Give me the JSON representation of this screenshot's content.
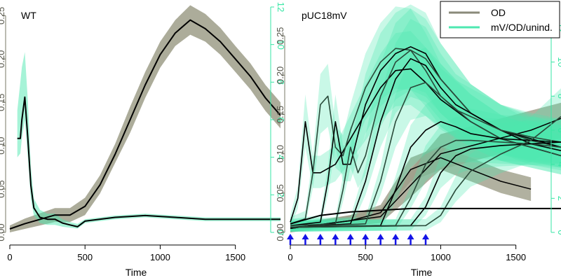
{
  "colors": {
    "od_band": "#9e9d88",
    "od_line": "#55554a",
    "mv_band": "#4de8b0",
    "mv_line": "#2a4a3a",
    "mean_line": "#000000",
    "mv_axis": "#36e6a4",
    "od_axis": "#777766",
    "arrow": "#1414e6"
  },
  "legend": {
    "placement": "top-right",
    "entries": [
      {
        "label": "OD",
        "color": "#8a8a7a"
      },
      {
        "label": "mV/OD/unind.",
        "color": "#4de8b0"
      }
    ]
  },
  "chart_data": [
    {
      "type": "line",
      "title": "WT",
      "xlabel": "Time",
      "ylabel": "",
      "xlim": [
        0,
        1800
      ],
      "ylim_left": [
        0,
        0.26
      ],
      "ylim_right": [
        0,
        12
      ],
      "x_ticks": [
        0,
        500,
        1000,
        1500
      ],
      "x_tick_labels": [
        "0",
        "500",
        "1000",
        "1500"
      ],
      "y_left_ticks": [
        0.0,
        0.05,
        0.1,
        0.15,
        0.2,
        0.25
      ],
      "y_left_tick_labels": [
        "0.00",
        "0.05",
        "0.10",
        "0.15",
        "0.20",
        "0.25"
      ],
      "y_right_ticks": [
        0,
        2,
        4,
        6,
        8,
        10,
        12
      ],
      "y_right_tick_labels": [
        "0",
        "2",
        "4",
        "6",
        "8",
        "10",
        "12"
      ],
      "grid": false,
      "series": [
        {
          "role": "od",
          "axis": "left",
          "x": [
            0,
            100,
            200,
            300,
            400,
            500,
            600,
            700,
            800,
            900,
            1000,
            1100,
            1200,
            1300,
            1400,
            1500,
            1600,
            1700,
            1800
          ],
          "y": [
            0.004,
            0.01,
            0.015,
            0.02,
            0.02,
            0.03,
            0.055,
            0.09,
            0.13,
            0.17,
            0.205,
            0.23,
            0.245,
            0.235,
            0.22,
            0.2,
            0.18,
            0.155,
            0.135
          ],
          "y_low": [
            0.0,
            0.004,
            0.008,
            0.012,
            0.012,
            0.02,
            0.045,
            0.08,
            0.115,
            0.155,
            0.19,
            0.215,
            0.228,
            0.22,
            0.205,
            0.185,
            0.165,
            0.14,
            0.12
          ],
          "y_high": [
            0.008,
            0.016,
            0.022,
            0.028,
            0.028,
            0.04,
            0.066,
            0.102,
            0.145,
            0.185,
            0.22,
            0.245,
            0.262,
            0.252,
            0.236,
            0.215,
            0.195,
            0.17,
            0.15
          ]
        },
        {
          "role": "mv",
          "axis": "right",
          "x": [
            50,
            70,
            80,
            100,
            120,
            140,
            160,
            200,
            250,
            300,
            350,
            400,
            450,
            500,
            700,
            900,
            1100,
            1300,
            1500,
            1800
          ],
          "y": [
            5.0,
            5.0,
            6.0,
            7.2,
            5.0,
            2.5,
            1.3,
            0.8,
            0.7,
            0.7,
            0.5,
            0.4,
            0.3,
            0.6,
            0.8,
            0.9,
            0.8,
            0.7,
            0.7,
            0.7
          ],
          "y_low": [
            4.0,
            4.2,
            5.0,
            6.0,
            4.0,
            1.8,
            0.9,
            0.5,
            0.4,
            0.4,
            0.3,
            0.25,
            0.2,
            0.5,
            0.7,
            0.8,
            0.7,
            0.6,
            0.6,
            0.6
          ],
          "y_high": [
            6.5,
            8.0,
            8.8,
            9.6,
            7.0,
            3.5,
            1.8,
            1.2,
            1.0,
            1.0,
            0.7,
            0.55,
            0.45,
            0.7,
            0.9,
            1.0,
            0.9,
            0.8,
            0.8,
            0.8
          ]
        }
      ]
    },
    {
      "type": "line",
      "title": "pUC18mV",
      "xlabel": "Time",
      "ylabel": "",
      "xlim": [
        0,
        1800
      ],
      "ylim_left": [
        0,
        0.26
      ],
      "ylim_right": [
        0,
        12
      ],
      "x_ticks": [
        0,
        500,
        1000,
        1500
      ],
      "x_tick_labels": [
        "0",
        "500",
        "1000",
        "1500"
      ],
      "y_left_ticks": [
        0.0,
        0.05,
        0.1,
        0.15,
        0.2,
        0.25
      ],
      "y_left_tick_labels": [
        "0.00",
        "0.05",
        "0.10",
        "0.15",
        "0.20",
        "0.25"
      ],
      "y_right_ticks": [
        0,
        2,
        4,
        6,
        8,
        10,
        12
      ],
      "y_right_tick_labels": [
        "0",
        "2",
        "4",
        "6",
        "8",
        "10",
        "12"
      ],
      "grid": false,
      "induction_times": [
        0,
        100,
        200,
        300,
        400,
        500,
        600,
        700,
        800,
        900
      ],
      "od_series": [
        {
          "x": [
            0,
            200,
            400,
            600,
            800,
            1000,
            1200,
            1400,
            1600,
            1800
          ],
          "y": [
            0.005,
            0.01,
            0.015,
            0.02,
            0.06,
            0.1,
            0.11,
            0.12,
            0.13,
            0.145
          ],
          "y_low": [
            0.0,
            0.005,
            0.008,
            0.012,
            0.045,
            0.08,
            0.09,
            0.1,
            0.11,
            0.12
          ],
          "y_high": [
            0.01,
            0.016,
            0.022,
            0.03,
            0.08,
            0.125,
            0.135,
            0.145,
            0.155,
            0.165
          ]
        },
        {
          "x": [
            0,
            200,
            400,
            600,
            800,
            1000,
            1200,
            1400,
            1600
          ],
          "y": [
            0.005,
            0.01,
            0.015,
            0.025,
            0.08,
            0.095,
            0.08,
            0.065,
            0.055
          ],
          "y_low": [
            0.0,
            0.005,
            0.01,
            0.018,
            0.065,
            0.08,
            0.065,
            0.05,
            0.04
          ],
          "y_high": [
            0.01,
            0.015,
            0.022,
            0.035,
            0.095,
            0.11,
            0.095,
            0.08,
            0.07
          ]
        }
      ],
      "mv_series": [
        {
          "induction": 0,
          "x": [
            0,
            50,
            100,
            150,
            200,
            300,
            400,
            500,
            600,
            700,
            800,
            900,
            1000,
            1200,
            1400,
            1600,
            1800
          ],
          "y": [
            0.6,
            2.0,
            6.5,
            3.5,
            3.5,
            4.0,
            5.5,
            7.0,
            8.5,
            9.5,
            9.6,
            8.8,
            7.8,
            6.5,
            5.5,
            5.0,
            4.5
          ]
        },
        {
          "induction": 100,
          "x": [
            0,
            100,
            150,
            200,
            250,
            300,
            350,
            400,
            500,
            600,
            700,
            800,
            900,
            1000,
            1200,
            1400,
            1600,
            1800
          ],
          "y": [
            0.5,
            0.8,
            3.5,
            7.5,
            8.0,
            5.0,
            4.5,
            6.0,
            8.5,
            10.0,
            10.8,
            10.7,
            9.5,
            8.0,
            6.5,
            5.5,
            5.0,
            4.5
          ]
        },
        {
          "induction": 200,
          "x": [
            0,
            200,
            250,
            300,
            350,
            400,
            500,
            600,
            700,
            800,
            900,
            1000,
            1200,
            1400,
            1600,
            1800
          ],
          "y": [
            0.4,
            0.6,
            3.0,
            6.5,
            4.0,
            4.0,
            7.5,
            9.5,
            10.5,
            10.9,
            10.5,
            9.0,
            7.0,
            6.0,
            5.2,
            4.8
          ]
        },
        {
          "induction": 300,
          "x": [
            0,
            300,
            350,
            400,
            450,
            500,
            600,
            700,
            800,
            900,
            1000,
            1200,
            1400,
            1600,
            1800
          ],
          "y": [
            0.4,
            0.5,
            2.5,
            5.0,
            3.5,
            4.5,
            8.0,
            10.0,
            10.7,
            10.2,
            9.0,
            7.0,
            6.0,
            5.4,
            5.0
          ]
        },
        {
          "induction": 400,
          "x": [
            0,
            400,
            500,
            600,
            700,
            800,
            900,
            1000,
            1100,
            1200,
            1400,
            1600,
            1800
          ],
          "y": [
            0.3,
            0.5,
            3.0,
            6.5,
            9.0,
            10.2,
            9.8,
            8.5,
            7.5,
            7.0,
            6.0,
            5.5,
            5.0
          ]
        },
        {
          "induction": 500,
          "x": [
            0,
            500,
            600,
            700,
            800,
            900,
            1000,
            1100,
            1200,
            1400,
            1600,
            1800
          ],
          "y": [
            0.3,
            0.5,
            3.0,
            6.5,
            8.5,
            8.8,
            8.0,
            7.2,
            6.8,
            6.0,
            5.6,
            5.3
          ]
        },
        {
          "induction": 600,
          "x": [
            0,
            600,
            700,
            800,
            900,
            1000,
            1100,
            1200,
            1400,
            1600,
            1800
          ],
          "y": [
            0.3,
            0.4,
            2.5,
            5.0,
            6.0,
            6.5,
            6.2,
            5.8,
            5.5,
            5.4,
            5.3
          ]
        },
        {
          "induction": 700,
          "x": [
            0,
            700,
            800,
            900,
            1000,
            1100,
            1200,
            1400,
            1600,
            1800
          ],
          "y": [
            0.3,
            0.4,
            2.0,
            4.0,
            5.0,
            5.4,
            5.4,
            5.3,
            5.2,
            5.0
          ]
        },
        {
          "induction": 800,
          "x": [
            0,
            800,
            900,
            1000,
            1100,
            1200,
            1400,
            1600,
            1800
          ],
          "y": [
            0.3,
            0.4,
            1.5,
            3.5,
            4.5,
            4.9,
            5.1,
            5.2,
            5.3
          ]
        },
        {
          "induction": 900,
          "x": [
            0,
            900,
            1000,
            1100,
            1200,
            1400,
            1600,
            1800
          ],
          "y": [
            0.3,
            0.4,
            1.0,
            2.5,
            3.6,
            4.6,
            5.4,
            6.8
          ]
        }
      ],
      "baseline_series": {
        "x": [
          0,
          200,
          400,
          600,
          800,
          1000,
          1200,
          1400,
          1600,
          1800
        ],
        "y": [
          0.5,
          1.0,
          1.2,
          1.3,
          1.4,
          1.4,
          1.4,
          1.4,
          1.4,
          1.4
        ]
      }
    }
  ]
}
